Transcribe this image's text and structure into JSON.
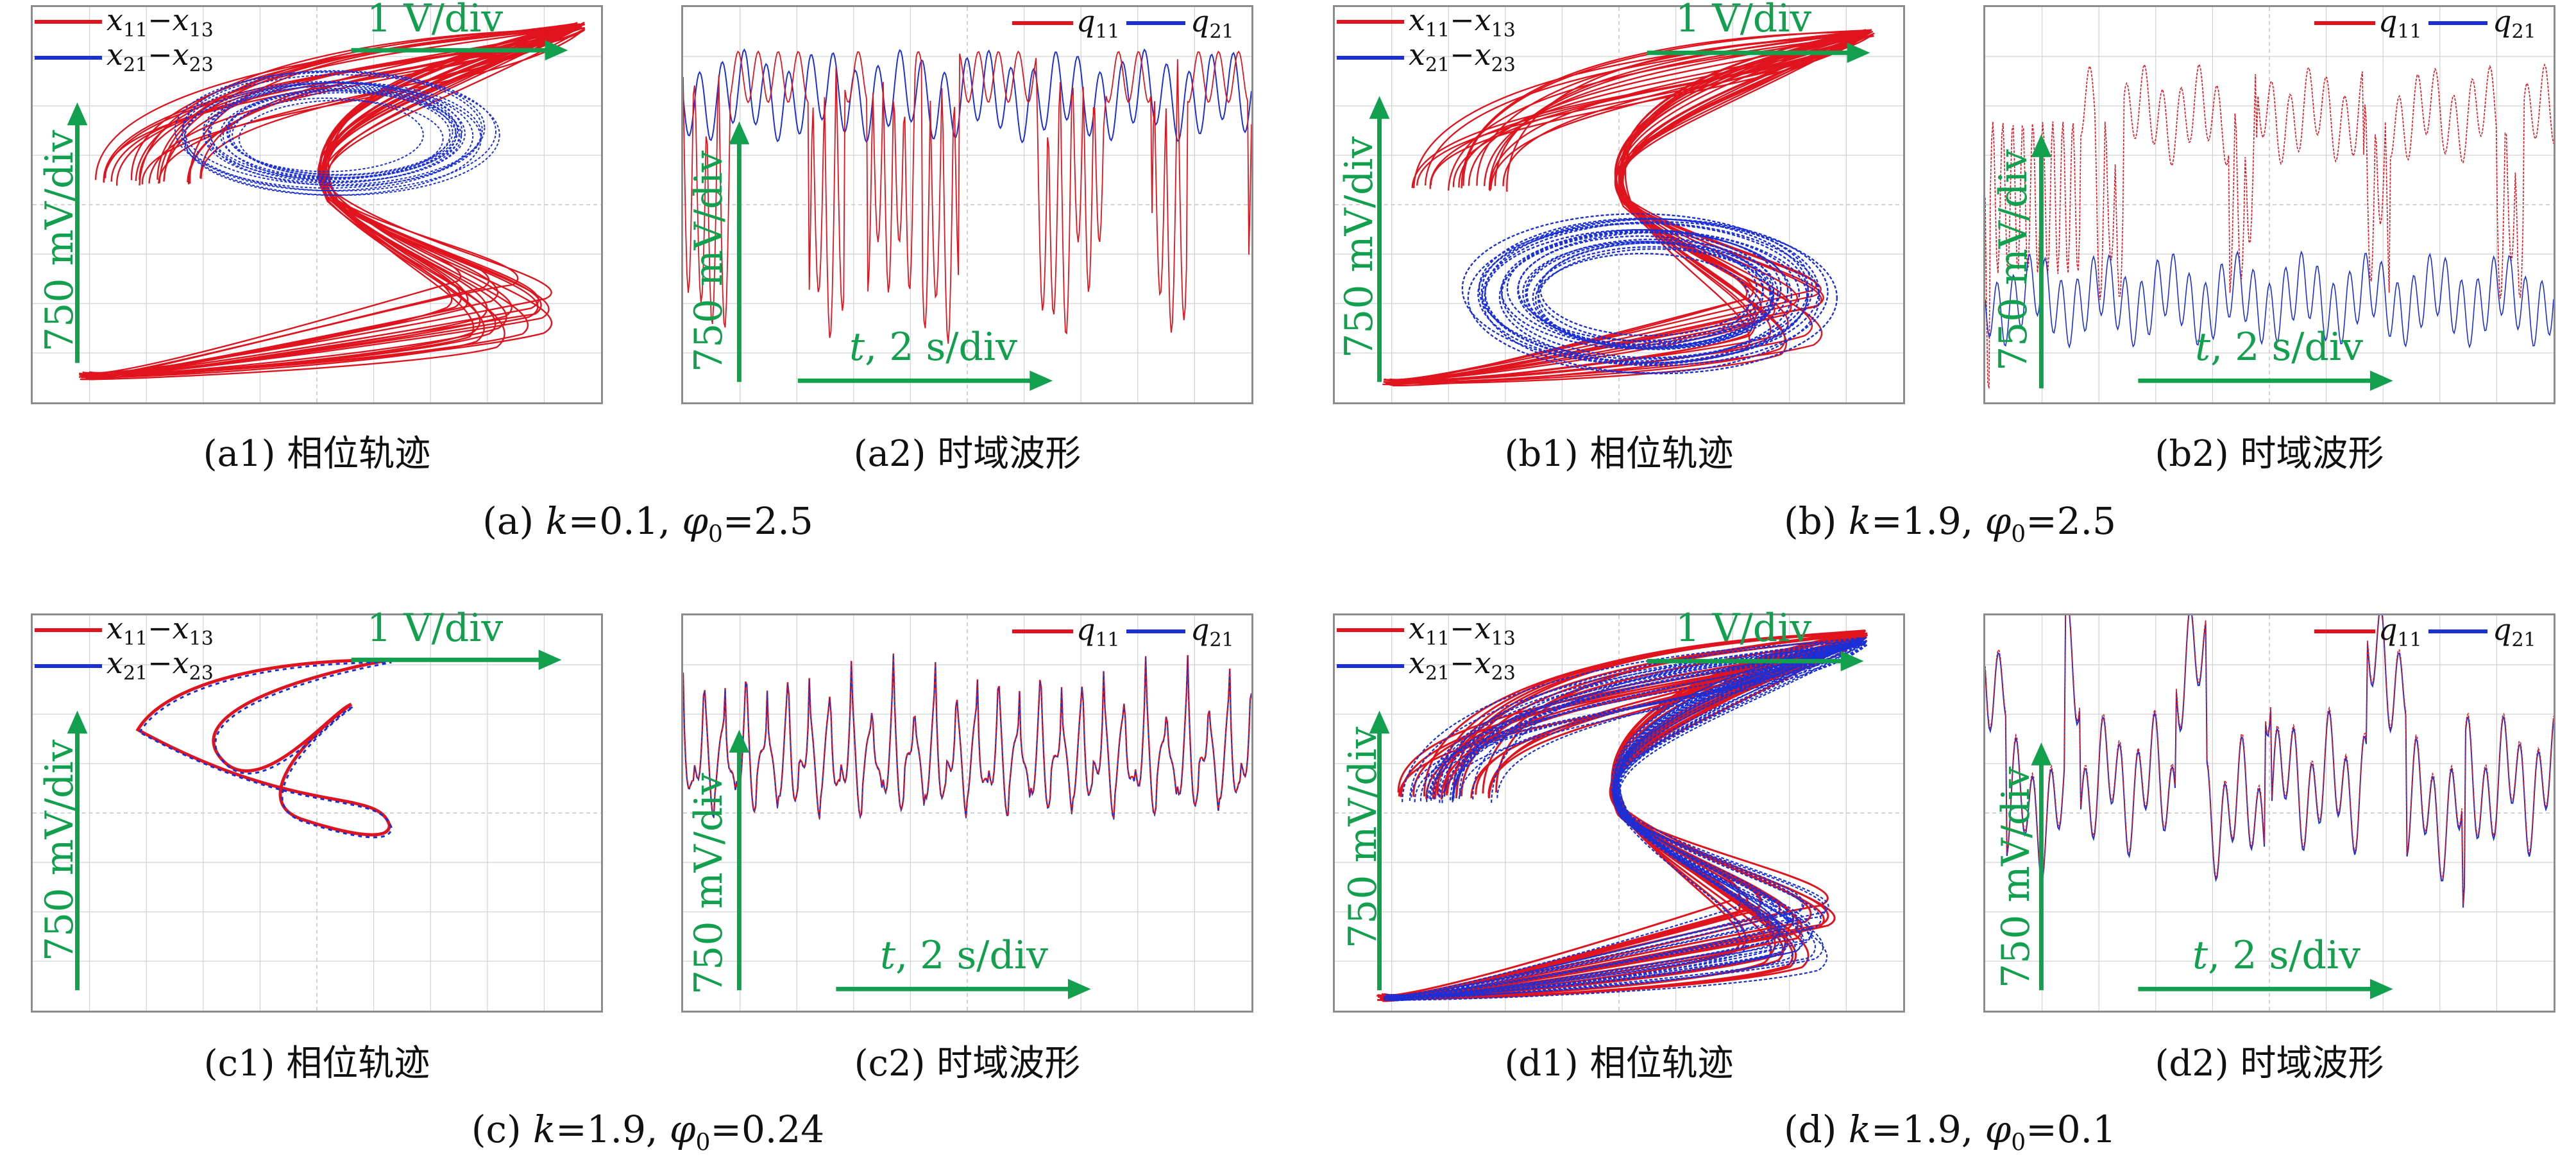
{
  "colors": {
    "series1": "#e0141e",
    "series2": "#1a2fd6",
    "annotation": "#12a04f",
    "frame": "#8c8c8c",
    "grid": "#d2d2d2"
  },
  "annotations": {
    "x_scale": "1 V/div",
    "y_scale": "750 mV/div",
    "t_symbol": "t",
    "t_scale": ", 2 s/div"
  },
  "legend": {
    "phase": [
      {
        "var": "x",
        "sub": "11",
        "dash": "−",
        "var2": "x",
        "sub2": "13"
      },
      {
        "var": "x",
        "sub": "21",
        "dash": "−",
        "var2": "x",
        "sub2": "23"
      }
    ],
    "time": [
      {
        "var": "q",
        "sub": "11"
      },
      {
        "var": "q",
        "sub": "21"
      }
    ]
  },
  "groups": [
    {
      "id": "a",
      "k": "0.1",
      "phi": "2.5",
      "caption": "(a)",
      "k_text": "k",
      "k_val": "=0.1, ",
      "phi_sym": "φ",
      "phi_sub": "0",
      "phi_val": "=2.5",
      "phase_caption": "(a1) 相位轨迹",
      "time_caption": "(a2) 时域波形"
    },
    {
      "id": "b",
      "k": "1.9",
      "phi": "2.5",
      "caption": "(b)",
      "k_text": "k",
      "k_val": "=1.9, ",
      "phi_sym": "φ",
      "phi_sub": "0",
      "phi_val": "=2.5",
      "phase_caption": "(b1) 相位轨迹",
      "time_caption": "(b2) 时域波形"
    },
    {
      "id": "c",
      "k": "1.9",
      "phi": "0.24",
      "caption": "(c)",
      "k_text": "k",
      "k_val": "=1.9, ",
      "phi_sym": "φ",
      "phi_sub": "0",
      "phi_val": "=0.24",
      "phase_caption": "(c1) 相位轨迹",
      "time_caption": "(c2) 时域波形"
    },
    {
      "id": "d",
      "k": "1.9",
      "phi": "0.1",
      "caption": "(d)",
      "k_text": "k",
      "k_val": "=1.9, ",
      "phi_sym": "φ",
      "phi_sub": "0",
      "phi_val": "=0.1",
      "phase_caption": "(d1) 相位轨迹",
      "time_caption": "(d2) 时域波形"
    }
  ],
  "chart_data": [
    {
      "type": "line",
      "panel": "a1",
      "mode": "phase-portrait",
      "series": [
        {
          "name": "x11−x13",
          "style": "chaotic-double-scroll"
        },
        {
          "name": "x21−x23",
          "style": "chaotic-upper-scroll"
        }
      ]
    },
    {
      "type": "line",
      "panel": "a2",
      "mode": "time-series",
      "series": [
        {
          "name": "q11",
          "style": "mostly-high-with-dips"
        },
        {
          "name": "q21",
          "style": "high-oscillation"
        }
      ]
    },
    {
      "type": "line",
      "panel": "b1",
      "mode": "phase-portrait",
      "series": [
        {
          "name": "x11−x13",
          "style": "chaotic-double-scroll"
        },
        {
          "name": "x21−x23",
          "style": "chaotic-lower-scroll"
        }
      ]
    },
    {
      "type": "line",
      "panel": "b2",
      "mode": "time-series",
      "series": [
        {
          "name": "q11",
          "style": "high-then-dips"
        },
        {
          "name": "q21",
          "style": "low-oscillation"
        }
      ]
    },
    {
      "type": "line",
      "panel": "c1",
      "mode": "phase-portrait",
      "series": [
        {
          "name": "x11−x13",
          "style": "periodic-loop"
        },
        {
          "name": "x21−x23",
          "style": "periodic-loop"
        }
      ]
    },
    {
      "type": "line",
      "panel": "c2",
      "mode": "time-series",
      "series": [
        {
          "name": "q11",
          "style": "periodic-synchronized"
        },
        {
          "name": "q21",
          "style": "periodic-synchronized"
        }
      ]
    },
    {
      "type": "line",
      "panel": "d1",
      "mode": "phase-portrait",
      "series": [
        {
          "name": "x11−x13",
          "style": "chaotic-double-scroll"
        },
        {
          "name": "x21−x23",
          "style": "chaotic-double-scroll"
        }
      ]
    },
    {
      "type": "line",
      "panel": "d2",
      "mode": "time-series",
      "series": [
        {
          "name": "q11",
          "style": "chaotic-synchronized"
        },
        {
          "name": "q21",
          "style": "chaotic-synchronized"
        }
      ]
    }
  ]
}
